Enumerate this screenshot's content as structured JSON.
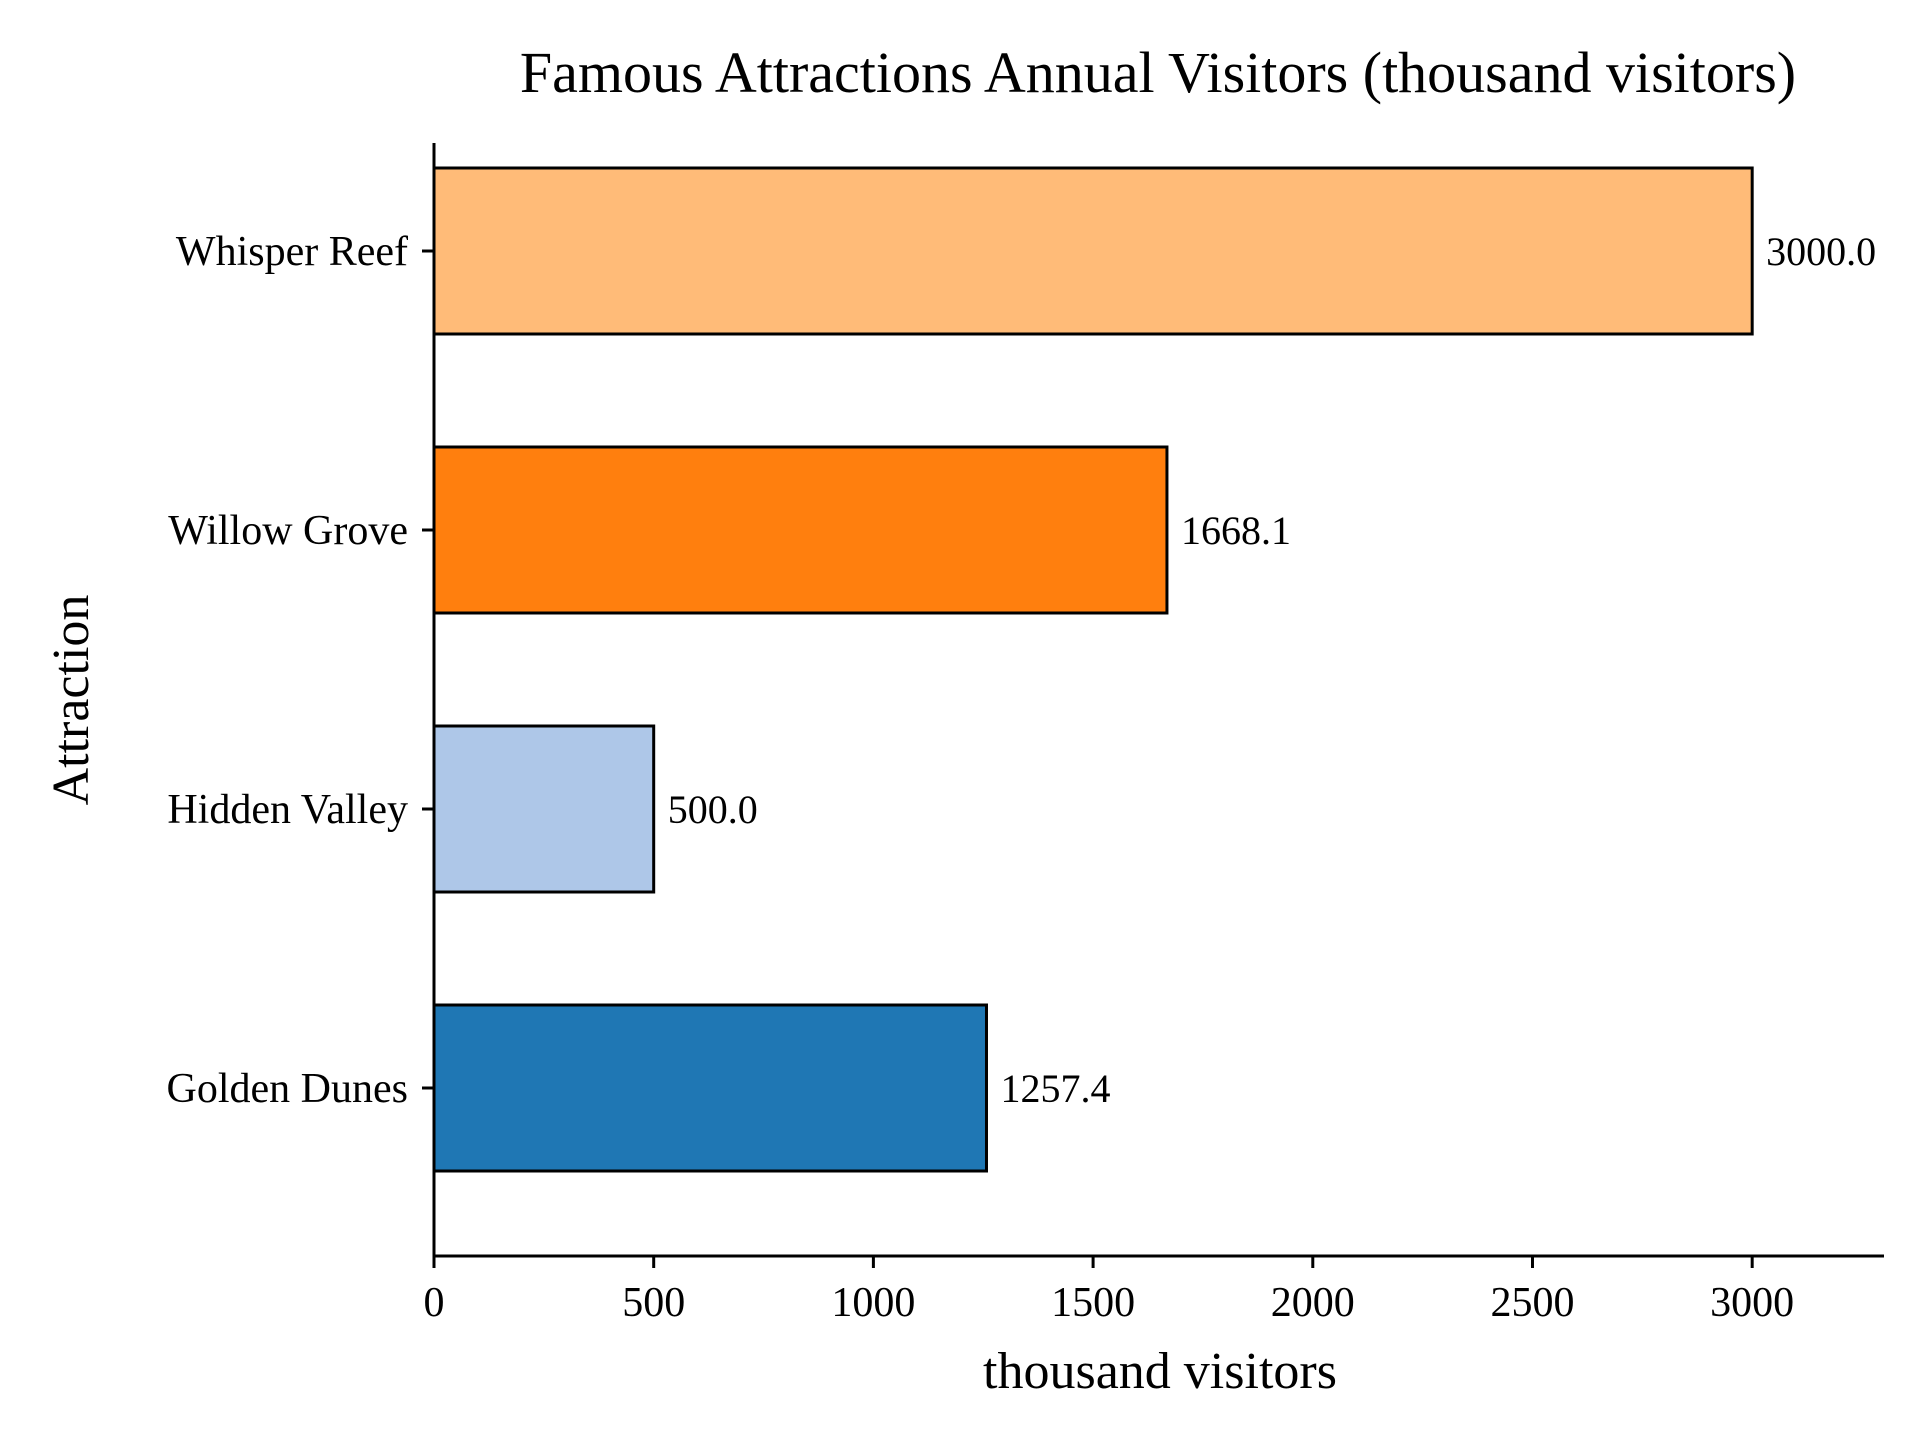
{
  "chart_data": {
    "type": "bar",
    "orientation": "horizontal",
    "title": "Famous Attractions Annual Visitors (thousand visitors)",
    "xlabel": "thousand visitors",
    "ylabel": "Attraction",
    "categories": [
      "Golden Dunes",
      "Hidden Valley",
      "Willow Grove",
      "Whisper Reef"
    ],
    "values": [
      1257.4,
      500.0,
      1668.1,
      3000.0
    ],
    "value_labels": [
      "1257.4",
      "500.0",
      "1668.1",
      "3000.0"
    ],
    "colors": [
      "#1f77b4",
      "#aec7e8",
      "#ff7f0e",
      "#ffbb78"
    ],
    "xlim": [
      0,
      3300
    ],
    "xticks": [
      0,
      500,
      1000,
      1500,
      2000,
      2500,
      3000
    ],
    "xtick_labels": [
      "0",
      "500",
      "1000",
      "1500",
      "2000",
      "2500",
      "3000"
    ],
    "grid": false,
    "legend": false
  }
}
